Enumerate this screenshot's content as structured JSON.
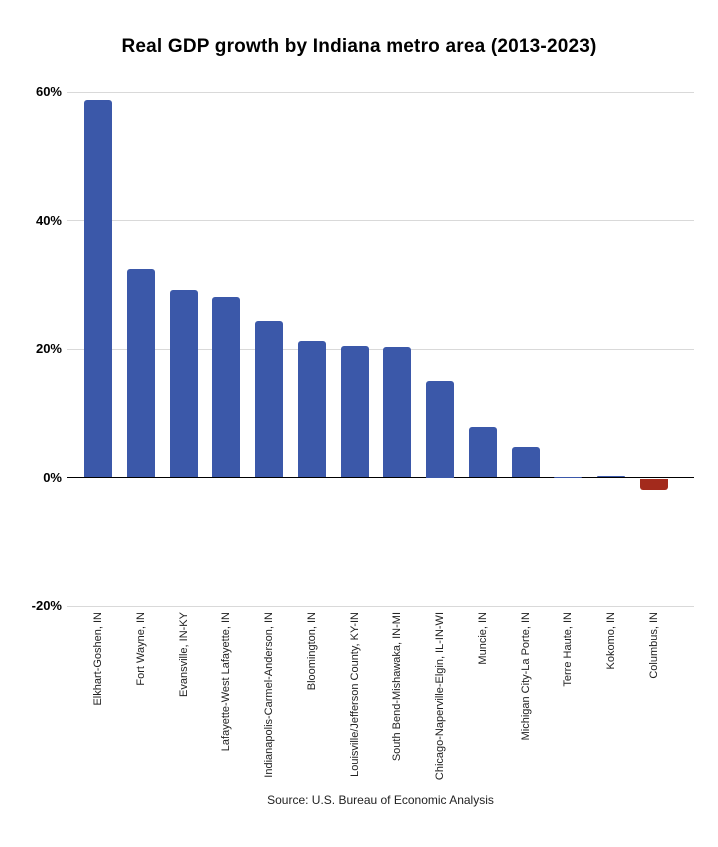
{
  "title": "Real GDP growth by Indiana metro area (2013-2023)",
  "source": "Source: U.S. Bureau of Economic Analysis",
  "colors": {
    "bar_positive": "#3b58a9",
    "bar_negative": "#a32a1c",
    "gridline": "#d9d9d9",
    "axis": "#000000"
  },
  "chart_data": {
    "type": "bar",
    "title": "Real GDP growth by Indiana metro area (2013-2023)",
    "categories": [
      "Elkhart-Goshen, IN",
      "Fort Wayne, IN",
      "Evansville, IN-KY",
      "Lafayette-West Lafayette, IN",
      "Indianapolis-Carmel-Anderson, IN",
      "Bloomington, IN",
      "Louisville/Jefferson County, KY-IN",
      "South Bend-Mishawaka, IN-MI",
      "Chicago-Naperville-Elgin, IL-IN-WI",
      "Muncie, IN",
      "Michigan City-La Porte, IN",
      "Terre Haute, IN",
      "Kokomo, IN",
      "Columbus, IN"
    ],
    "values": [
      58.8,
      32.4,
      29.2,
      28.1,
      24.4,
      21.3,
      20.5,
      20.3,
      15.0,
      7.8,
      4.8,
      0.1,
      0.3,
      -1.8
    ],
    "xlabel": "",
    "ylabel": "",
    "ylim": [
      -20,
      60
    ],
    "yticks": [
      60,
      40,
      20,
      0,
      -20
    ],
    "ytick_labels": [
      "60%",
      "40%",
      "20%",
      "0%",
      "-20%"
    ],
    "grid": true,
    "legend": false,
    "annotation": "Source: U.S. Bureau of Economic Analysis"
  }
}
